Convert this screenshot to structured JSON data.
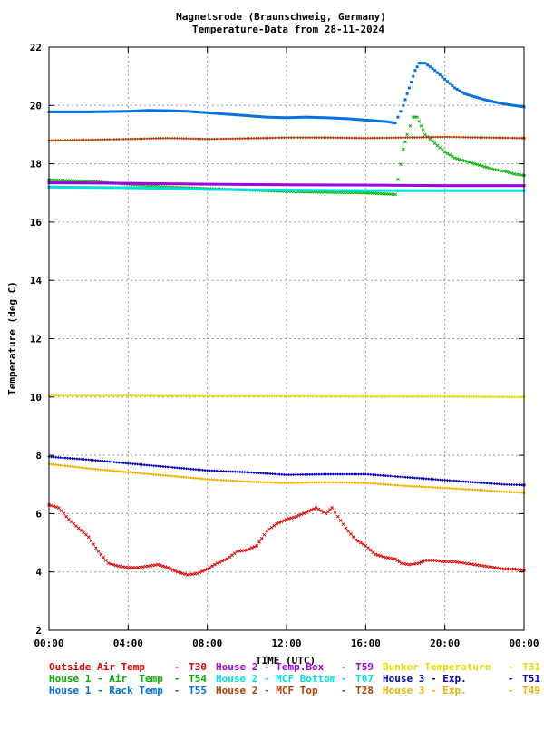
{
  "chart_data": {
    "type": "scatter",
    "title": [
      "Magnetsrode (Braunschweig, Germany)",
      "Temperature-Data from 28-11-2024"
    ],
    "xlabel": "TIME (UTC)",
    "ylabel": "Temperature (deg C)",
    "xlim": [
      0,
      24
    ],
    "ylim": [
      2,
      22
    ],
    "grid": true,
    "x_tick_labels": [
      "00:00",
      "04:00",
      "08:00",
      "12:00",
      "16:00",
      "20:00",
      "00:00"
    ],
    "y_tick_labels": [
      "2",
      "4",
      "6",
      "8",
      "10",
      "12",
      "14",
      "16",
      "18",
      "20",
      "22"
    ],
    "legend_position": "bottom",
    "series": [
      {
        "name": "Outside Air Temp",
        "code": "T30",
        "color": "#e00000",
        "marker": "cross",
        "points": [
          [
            0,
            6.3
          ],
          [
            0.5,
            6.2
          ],
          [
            1,
            5.8
          ],
          [
            1.5,
            5.5
          ],
          [
            2,
            5.2
          ],
          [
            2.5,
            4.7
          ],
          [
            3,
            4.3
          ],
          [
            3.5,
            4.2
          ],
          [
            4,
            4.15
          ],
          [
            4.5,
            4.15
          ],
          [
            5,
            4.2
          ],
          [
            5.5,
            4.25
          ],
          [
            6,
            4.15
          ],
          [
            6.5,
            4.0
          ],
          [
            7,
            3.9
          ],
          [
            7.5,
            3.95
          ],
          [
            8,
            4.1
          ],
          [
            8.5,
            4.3
          ],
          [
            9,
            4.45
          ],
          [
            9.5,
            4.7
          ],
          [
            10,
            4.75
          ],
          [
            10.5,
            4.9
          ],
          [
            11,
            5.4
          ],
          [
            11.5,
            5.65
          ],
          [
            12,
            5.8
          ],
          [
            12.5,
            5.9
          ],
          [
            13,
            6.05
          ],
          [
            13.5,
            6.2
          ],
          [
            14,
            6.0
          ],
          [
            14.3,
            6.2
          ],
          [
            14.6,
            5.9
          ],
          [
            15,
            5.5
          ],
          [
            15.5,
            5.1
          ],
          [
            16,
            4.9
          ],
          [
            16.5,
            4.6
          ],
          [
            17,
            4.5
          ],
          [
            17.5,
            4.45
          ],
          [
            17.8,
            4.3
          ],
          [
            18.2,
            4.25
          ],
          [
            18.7,
            4.3
          ],
          [
            19,
            4.4
          ],
          [
            19.5,
            4.4
          ],
          [
            20,
            4.35
          ],
          [
            20.5,
            4.35
          ],
          [
            21,
            4.3
          ],
          [
            21.5,
            4.25
          ],
          [
            22,
            4.2
          ],
          [
            22.5,
            4.15
          ],
          [
            23,
            4.1
          ],
          [
            23.5,
            4.1
          ],
          [
            24,
            4.05
          ]
        ]
      },
      {
        "name": "House 1 - Air  Temp",
        "code": "T54",
        "color": "#00b000",
        "marker": "cross",
        "points": [
          [
            0,
            17.45
          ],
          [
            2,
            17.4
          ],
          [
            4,
            17.3
          ],
          [
            6,
            17.2
          ],
          [
            8,
            17.15
          ],
          [
            10,
            17.1
          ],
          [
            12,
            17.05
          ],
          [
            14,
            17.02
          ],
          [
            16,
            17.0
          ],
          [
            17.5,
            16.95
          ],
          [
            17.9,
            18.5
          ],
          [
            18.1,
            19.0
          ],
          [
            18.4,
            19.6
          ],
          [
            18.6,
            19.6
          ],
          [
            18.8,
            19.3
          ],
          [
            19,
            19.0
          ],
          [
            19.5,
            18.7
          ],
          [
            20,
            18.4
          ],
          [
            20.5,
            18.2
          ],
          [
            21,
            18.1
          ],
          [
            21.5,
            18.0
          ],
          [
            22,
            17.9
          ],
          [
            22.5,
            17.8
          ],
          [
            23,
            17.75
          ],
          [
            23.5,
            17.65
          ],
          [
            24,
            17.6
          ]
        ]
      },
      {
        "name": "House 1 - Rack Temp",
        "code": "T55",
        "color": "#0070e0",
        "marker": "square",
        "points": [
          [
            0,
            19.78
          ],
          [
            2,
            19.78
          ],
          [
            4,
            19.8
          ],
          [
            5,
            19.83
          ],
          [
            6,
            19.82
          ],
          [
            7,
            19.8
          ],
          [
            8,
            19.75
          ],
          [
            9,
            19.7
          ],
          [
            10,
            19.65
          ],
          [
            11,
            19.6
          ],
          [
            12,
            19.58
          ],
          [
            13,
            19.6
          ],
          [
            14,
            19.58
          ],
          [
            15,
            19.55
          ],
          [
            16,
            19.5
          ],
          [
            17,
            19.45
          ],
          [
            17.5,
            19.4
          ],
          [
            17.9,
            20.0
          ],
          [
            18.2,
            20.6
          ],
          [
            18.5,
            21.2
          ],
          [
            18.7,
            21.45
          ],
          [
            19,
            21.45
          ],
          [
            19.5,
            21.2
          ],
          [
            20,
            20.9
          ],
          [
            20.5,
            20.6
          ],
          [
            21,
            20.4
          ],
          [
            21.5,
            20.3
          ],
          [
            22,
            20.2
          ],
          [
            22.5,
            20.12
          ],
          [
            23,
            20.05
          ],
          [
            23.5,
            20.0
          ],
          [
            24,
            19.95
          ]
        ]
      },
      {
        "name": "House 2 - Temp.Box",
        "code": "T59",
        "color": "#a000e0",
        "marker": "square",
        "points": [
          [
            0,
            17.35
          ],
          [
            4,
            17.33
          ],
          [
            8,
            17.3
          ],
          [
            12,
            17.28
          ],
          [
            16,
            17.27
          ],
          [
            20,
            17.25
          ],
          [
            24,
            17.25
          ]
        ]
      },
      {
        "name": "House 2 - MCF Bottom",
        "code": "T07",
        "color": "#00e0e0",
        "marker": "square",
        "points": [
          [
            0,
            17.2
          ],
          [
            4,
            17.18
          ],
          [
            8,
            17.12
          ],
          [
            12,
            17.1
          ],
          [
            16,
            17.08
          ],
          [
            20,
            17.08
          ],
          [
            24,
            17.08
          ]
        ]
      },
      {
        "name": "House 2 - MCF Top",
        "code": "T28",
        "color": "#b04000",
        "marker": "diamond",
        "points": [
          [
            0,
            18.8
          ],
          [
            2,
            18.82
          ],
          [
            4,
            18.85
          ],
          [
            6,
            18.88
          ],
          [
            8,
            18.85
          ],
          [
            10,
            18.87
          ],
          [
            12,
            18.9
          ],
          [
            14,
            18.9
          ],
          [
            16,
            18.88
          ],
          [
            18,
            18.9
          ],
          [
            20,
            18.92
          ],
          [
            22,
            18.9
          ],
          [
            24,
            18.88
          ]
        ]
      },
      {
        "name": "Bunker Temperature",
        "code": "T31",
        "color": "#e0e000",
        "marker": "diamond",
        "points": [
          [
            0,
            10.05
          ],
          [
            4,
            10.05
          ],
          [
            8,
            10.03
          ],
          [
            12,
            10.03
          ],
          [
            16,
            10.02
          ],
          [
            20,
            10.02
          ],
          [
            24,
            10.0
          ]
        ]
      },
      {
        "name": "House 3 - Exp.",
        "code": "T51",
        "color": "#0000b0",
        "marker": "diamond",
        "points": [
          [
            0,
            7.95
          ],
          [
            2,
            7.85
          ],
          [
            4,
            7.72
          ],
          [
            6,
            7.6
          ],
          [
            8,
            7.48
          ],
          [
            10,
            7.42
          ],
          [
            12,
            7.33
          ],
          [
            14,
            7.35
          ],
          [
            16,
            7.35
          ],
          [
            17,
            7.3
          ],
          [
            18,
            7.25
          ],
          [
            20,
            7.15
          ],
          [
            22,
            7.05
          ],
          [
            23,
            7.0
          ],
          [
            24,
            6.98
          ]
        ]
      },
      {
        "name": "House 3 - Exp.",
        "code": "T49",
        "color": "#f0b000",
        "marker": "diamond",
        "points": [
          [
            0,
            7.7
          ],
          [
            2,
            7.55
          ],
          [
            4,
            7.42
          ],
          [
            6,
            7.3
          ],
          [
            8,
            7.18
          ],
          [
            10,
            7.1
          ],
          [
            12,
            7.05
          ],
          [
            14,
            7.08
          ],
          [
            16,
            7.05
          ],
          [
            17,
            7.0
          ],
          [
            18,
            6.95
          ],
          [
            20,
            6.88
          ],
          [
            22,
            6.8
          ],
          [
            23,
            6.75
          ],
          [
            24,
            6.72
          ]
        ]
      }
    ]
  },
  "legend_rows": [
    [
      {
        "label": "Outside Air Temp",
        "dash": "-",
        "code": "T30",
        "color": "#e00000"
      },
      {
        "label": "House 2 - Temp.Box",
        "dash": "-",
        "code": "T59",
        "color": "#a000e0"
      },
      {
        "label": "Bunker Temperature",
        "dash": "-",
        "code": "T31",
        "color": "#e0e000"
      }
    ],
    [
      {
        "label": "House 1 - Air  Temp",
        "dash": "-",
        "code": "T54",
        "color": "#00b000"
      },
      {
        "label": "House 2 - MCF Bottom",
        "dash": "-",
        "code": "T07",
        "color": "#00e0e0"
      },
      {
        "label": "House 3 - Exp.",
        "dash": "-",
        "code": "T51",
        "color": "#0000b0"
      }
    ],
    [
      {
        "label": "House 1 - Rack Temp",
        "dash": "-",
        "code": "T55",
        "color": "#0070e0"
      },
      {
        "label": "House 2 - MCF Top",
        "dash": "-",
        "code": "T28",
        "color": "#b04000"
      },
      {
        "label": "House 3 - Exp.",
        "dash": "-",
        "code": "T49",
        "color": "#f0b000"
      }
    ]
  ]
}
